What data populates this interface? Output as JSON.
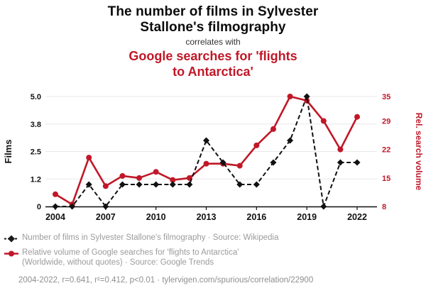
{
  "header": {
    "title_line1": "The number of films in Sylvester",
    "title_line2": "Stallone's filmography",
    "connector": "correlates with",
    "subtitle_line1": "Google searches for 'flights",
    "subtitle_line2": "to Antarctica'"
  },
  "colors": {
    "accent_red": "#c01828",
    "series_black": "#111111",
    "grid": "#e8e8e8",
    "muted_text": "#9b9b9b"
  },
  "chart_data": {
    "type": "line",
    "title": "The number of films in Sylvester Stallone's filmography correlates with Google searches for 'flights to Antarctica'",
    "x": [
      2004,
      2005,
      2006,
      2007,
      2008,
      2009,
      2010,
      2011,
      2012,
      2013,
      2014,
      2015,
      2016,
      2017,
      2018,
      2019,
      2020,
      2021,
      2022
    ],
    "x_ticks": [
      2004,
      2007,
      2010,
      2013,
      2016,
      2019,
      2022
    ],
    "left_axis": {
      "label": "Films",
      "range": [
        0,
        5
      ],
      "ticks": [
        0,
        1.25,
        2.5,
        3.75,
        5
      ],
      "tick_labels": [
        "0",
        "1.2",
        "2.5",
        "3.8",
        "5.0"
      ]
    },
    "right_axis": {
      "label": "Rel. search volume",
      "range": [
        8,
        35
      ],
      "ticks": [
        8,
        15,
        22,
        29,
        35
      ],
      "tick_labels": [
        "8",
        "15",
        "22",
        "29",
        "35"
      ]
    },
    "series": [
      {
        "name": "Number of films in Sylvester Stallone's filmography",
        "axis": "left",
        "color": "#111111",
        "style": "dashed-diamond",
        "values": [
          0,
          0,
          1,
          0,
          1,
          1,
          1,
          1,
          1,
          3,
          2,
          1,
          1,
          2,
          3,
          5,
          0,
          2,
          2
        ]
      },
      {
        "name": "Relative volume of Google searches for 'flights to Antarctica'",
        "axis": "right",
        "color": "#c01828",
        "style": "solid-circle",
        "values": [
          11,
          8.5,
          20,
          13,
          15.5,
          15,
          16.5,
          14.5,
          15,
          18.5,
          18.5,
          18,
          23,
          27,
          35,
          34,
          29,
          22,
          30
        ]
      }
    ],
    "grid": true,
    "legend_position": "bottom"
  },
  "legend": {
    "item1": "Number of films in Sylvester Stallone's filmography · Source: Wikipedia",
    "item2_line1": "Relative volume of Google searches for 'flights to Antarctica'",
    "item2_line2": "(Worldwide, without quotes) · Source: Google Trends"
  },
  "footer": {
    "text": "2004-2022, r=0.641, r²=0.412, p<0.01 · tylervigen.com/spurious/correlation/22900"
  }
}
